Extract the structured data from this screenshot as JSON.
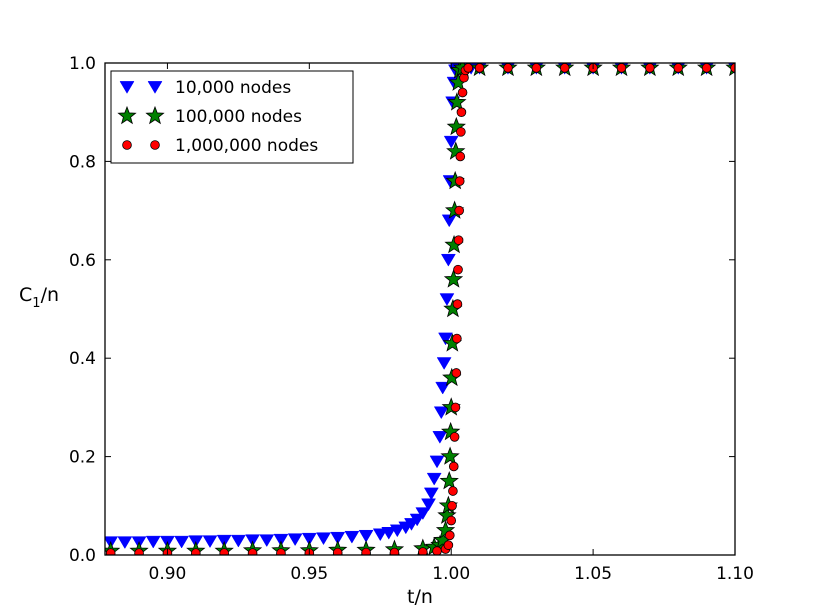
{
  "chart_data": {
    "type": "scatter",
    "xlabel": "t/n",
    "ylabel": {
      "main": "C",
      "subscript": "1",
      "suffix": "/n"
    },
    "xlim": [
      0.878,
      1.1
    ],
    "ylim": [
      0.0,
      1.0
    ],
    "x_ticks": [
      0.9,
      0.95,
      1.0,
      1.05,
      1.1
    ],
    "x_tick_labels": [
      "0.90",
      "0.95",
      "1.00",
      "1.05",
      "1.10"
    ],
    "y_ticks": [
      0.0,
      0.2,
      0.4,
      0.6,
      0.8,
      1.0
    ],
    "y_tick_labels": [
      "0.0",
      "0.2",
      "0.4",
      "0.6",
      "0.8",
      "1.0"
    ],
    "grid": false,
    "legend_position": "top-left",
    "series": [
      {
        "name": "10,000 nodes",
        "marker": "triangle-down",
        "color": "#0000ff",
        "points": [
          [
            0.88,
            0.026
          ],
          [
            0.885,
            0.026
          ],
          [
            0.89,
            0.026
          ],
          [
            0.895,
            0.027
          ],
          [
            0.9,
            0.027
          ],
          [
            0.905,
            0.027
          ],
          [
            0.91,
            0.028
          ],
          [
            0.915,
            0.028
          ],
          [
            0.92,
            0.029
          ],
          [
            0.925,
            0.029
          ],
          [
            0.93,
            0.03
          ],
          [
            0.935,
            0.03
          ],
          [
            0.94,
            0.031
          ],
          [
            0.945,
            0.032
          ],
          [
            0.95,
            0.033
          ],
          [
            0.955,
            0.034
          ],
          [
            0.96,
            0.035
          ],
          [
            0.965,
            0.037
          ],
          [
            0.97,
            0.039
          ],
          [
            0.975,
            0.042
          ],
          [
            0.978,
            0.045
          ],
          [
            0.981,
            0.05
          ],
          [
            0.984,
            0.056
          ],
          [
            0.986,
            0.063
          ],
          [
            0.988,
            0.072
          ],
          [
            0.99,
            0.085
          ],
          [
            0.992,
            0.103
          ],
          [
            0.993,
            0.125
          ],
          [
            0.994,
            0.155
          ],
          [
            0.995,
            0.19
          ],
          [
            0.996,
            0.24
          ],
          [
            0.9965,
            0.29
          ],
          [
            0.997,
            0.34
          ],
          [
            0.9975,
            0.39
          ],
          [
            0.998,
            0.44
          ],
          [
            0.9985,
            0.52
          ],
          [
            0.999,
            0.6
          ],
          [
            0.9993,
            0.68
          ],
          [
            0.9996,
            0.76
          ],
          [
            1.0,
            0.84
          ],
          [
            1.0005,
            0.92
          ],
          [
            1.001,
            0.96
          ],
          [
            1.0015,
            0.985
          ],
          [
            1.002,
            0.99
          ],
          [
            1.004,
            0.99
          ],
          [
            1.007,
            0.99
          ],
          [
            1.01,
            0.99
          ],
          [
            1.02,
            0.99
          ],
          [
            1.03,
            0.99
          ],
          [
            1.04,
            0.99
          ],
          [
            1.05,
            0.99
          ],
          [
            1.06,
            0.99
          ],
          [
            1.07,
            0.99
          ],
          [
            1.08,
            0.99
          ],
          [
            1.09,
            0.99
          ],
          [
            1.1,
            0.99
          ]
        ]
      },
      {
        "name": "100,000 nodes",
        "marker": "star",
        "color": "#008000",
        "points": [
          [
            0.88,
            0.008
          ],
          [
            0.89,
            0.008
          ],
          [
            0.9,
            0.008
          ],
          [
            0.91,
            0.008
          ],
          [
            0.92,
            0.008
          ],
          [
            0.93,
            0.009
          ],
          [
            0.94,
            0.009
          ],
          [
            0.95,
            0.009
          ],
          [
            0.96,
            0.01
          ],
          [
            0.97,
            0.01
          ],
          [
            0.98,
            0.011
          ],
          [
            0.99,
            0.013
          ],
          [
            0.994,
            0.016
          ],
          [
            0.996,
            0.02
          ],
          [
            0.997,
            0.03
          ],
          [
            0.998,
            0.05
          ],
          [
            0.9985,
            0.08
          ],
          [
            0.999,
            0.1
          ],
          [
            0.9993,
            0.15
          ],
          [
            0.9996,
            0.2
          ],
          [
            0.9998,
            0.25
          ],
          [
            1.0,
            0.3
          ],
          [
            1.0002,
            0.36
          ],
          [
            1.0004,
            0.43
          ],
          [
            1.0006,
            0.5
          ],
          [
            1.0008,
            0.56
          ],
          [
            1.001,
            0.63
          ],
          [
            1.0012,
            0.7
          ],
          [
            1.0014,
            0.76
          ],
          [
            1.0016,
            0.82
          ],
          [
            1.0018,
            0.87
          ],
          [
            1.002,
            0.92
          ],
          [
            1.0025,
            0.96
          ],
          [
            1.003,
            0.985
          ],
          [
            1.004,
            0.99
          ],
          [
            1.01,
            0.99
          ],
          [
            1.02,
            0.99
          ],
          [
            1.03,
            0.99
          ],
          [
            1.04,
            0.99
          ],
          [
            1.05,
            0.99
          ],
          [
            1.06,
            0.99
          ],
          [
            1.07,
            0.99
          ],
          [
            1.08,
            0.99
          ],
          [
            1.09,
            0.99
          ],
          [
            1.1,
            0.99
          ]
        ]
      },
      {
        "name": "1,000,000 nodes",
        "marker": "circle",
        "color": "#ff0000",
        "points": [
          [
            0.88,
            0.004
          ],
          [
            0.89,
            0.004
          ],
          [
            0.9,
            0.004
          ],
          [
            0.91,
            0.004
          ],
          [
            0.92,
            0.004
          ],
          [
            0.93,
            0.004
          ],
          [
            0.94,
            0.004
          ],
          [
            0.95,
            0.004
          ],
          [
            0.96,
            0.005
          ],
          [
            0.97,
            0.005
          ],
          [
            0.98,
            0.005
          ],
          [
            0.99,
            0.006
          ],
          [
            0.995,
            0.008
          ],
          [
            0.998,
            0.012
          ],
          [
            0.999,
            0.02
          ],
          [
            0.9995,
            0.04
          ],
          [
            1.0,
            0.07
          ],
          [
            1.0003,
            0.1
          ],
          [
            1.0006,
            0.13
          ],
          [
            1.0009,
            0.18
          ],
          [
            1.0012,
            0.24
          ],
          [
            1.0015,
            0.3
          ],
          [
            1.0018,
            0.37
          ],
          [
            1.002,
            0.44
          ],
          [
            1.0022,
            0.51
          ],
          [
            1.0024,
            0.58
          ],
          [
            1.0026,
            0.64
          ],
          [
            1.0028,
            0.7
          ],
          [
            1.003,
            0.76
          ],
          [
            1.0032,
            0.81
          ],
          [
            1.0034,
            0.86
          ],
          [
            1.0036,
            0.9
          ],
          [
            1.004,
            0.94
          ],
          [
            1.0045,
            0.97
          ],
          [
            1.005,
            0.985
          ],
          [
            1.006,
            0.99
          ],
          [
            1.01,
            0.99
          ],
          [
            1.02,
            0.99
          ],
          [
            1.03,
            0.99
          ],
          [
            1.04,
            0.99
          ],
          [
            1.05,
            0.99
          ],
          [
            1.06,
            0.99
          ],
          [
            1.07,
            0.99
          ],
          [
            1.08,
            0.99
          ],
          [
            1.09,
            0.99
          ],
          [
            1.1,
            0.99
          ]
        ]
      }
    ]
  }
}
